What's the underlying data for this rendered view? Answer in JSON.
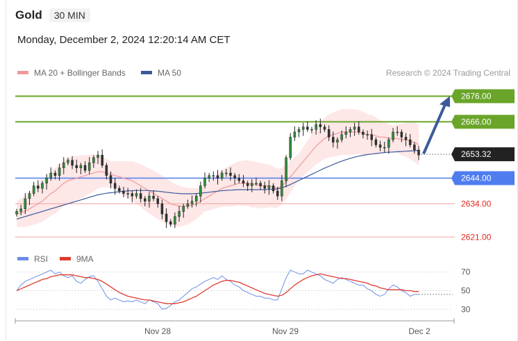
{
  "header": {
    "symbol": "Gold",
    "timeframe": "30 MIN",
    "datetime": "Monday, December 2, 2024 12:20:14 AM CET"
  },
  "legend": {
    "ma20_label": "MA 20 + Bollinger Bands",
    "ma50_label": "MA 50",
    "credit": "Research © 2024 Trading Central",
    "colors": {
      "ma20": "#ef9a9a",
      "ma50": "#3c5a99",
      "bands": "#fde3e3"
    }
  },
  "rsi_legend": {
    "rsi_label": "RSI",
    "ma9_label": "9MA",
    "colors": {
      "rsi": "#6b8ee8",
      "ma9": "#e03a2f"
    }
  },
  "chart_data": [
    {
      "type": "candlestick",
      "x_ticks": [
        "Nov 28",
        "Nov 29",
        "Dec 2"
      ],
      "ylim": [
        2620,
        2681
      ],
      "levels": [
        {
          "value": 2676.0,
          "label": "2676.00",
          "style": "resistance",
          "color": "#6aa529"
        },
        {
          "value": 2666.0,
          "label": "2666.00",
          "style": "resistance",
          "color": "#6aa529"
        },
        {
          "value": 2653.32,
          "label": "2653.32",
          "style": "current",
          "color": "#222222"
        },
        {
          "value": 2644.0,
          "label": "2644.00",
          "style": "pivot",
          "color": "#4f7df0"
        },
        {
          "value": 2634.0,
          "label": "2634.00",
          "style": "support",
          "color": "#e0261b"
        },
        {
          "value": 2621.0,
          "label": "2621.00",
          "style": "support",
          "color": "#e0261b"
        }
      ],
      "arrow": {
        "from": 2653.5,
        "to": 2675.5,
        "direction": "up",
        "color": "#3c5a99"
      },
      "closes": [
        2631,
        2632,
        2636,
        2638,
        2641,
        2640,
        2642,
        2644,
        2646,
        2645,
        2648,
        2650,
        2651,
        2649,
        2648,
        2649,
        2647,
        2650,
        2652,
        2653,
        2649,
        2645,
        2642,
        2640,
        2639,
        2638,
        2638,
        2637,
        2638,
        2636,
        2635,
        2637,
        2636,
        2634,
        2630,
        2627,
        2626,
        2629,
        2631,
        2633,
        2634,
        2635,
        2637,
        2641,
        2644,
        2645,
        2645,
        2644,
        2646,
        2646,
        2645,
        2644,
        2643,
        2642,
        2641,
        2642,
        2642,
        2641,
        2640,
        2641,
        2639,
        2637,
        2643,
        2652,
        2660,
        2662,
        2663,
        2664,
        2663,
        2663,
        2665,
        2664,
        2663,
        2660,
        2658,
        2659,
        2661,
        2662,
        2663,
        2664,
        2662,
        2661,
        2661,
        2659,
        2657,
        2656,
        2656,
        2659,
        2662,
        2662,
        2660,
        2659,
        2657,
        2655,
        2653
      ],
      "ma20": [
        2630,
        2630.5,
        2631,
        2632,
        2633,
        2634,
        2635,
        2636.5,
        2638,
        2639,
        2640.5,
        2642,
        2643,
        2643.5,
        2644,
        2644.5,
        2645,
        2645.5,
        2646,
        2646.5,
        2646.5,
        2646,
        2645.5,
        2645,
        2644.5,
        2644,
        2643.5,
        2643,
        2642,
        2641,
        2640,
        2639,
        2638,
        2637,
        2636,
        2635,
        2634,
        2633.5,
        2633,
        2633,
        2633,
        2633.5,
        2634,
        2635,
        2636,
        2637,
        2638,
        2639,
        2640,
        2640.5,
        2641,
        2641.5,
        2642,
        2642,
        2642,
        2641.5,
        2641.5,
        2641,
        2641,
        2641,
        2640.5,
        2640,
        2641,
        2642.5,
        2644.5,
        2646.5,
        2648.5,
        2650.5,
        2652.5,
        2654.5,
        2656.5,
        2658,
        2659.5,
        2660.5,
        2661,
        2661.5,
        2662,
        2662,
        2662,
        2662,
        2662,
        2661.5,
        2661,
        2661,
        2660.5,
        2660,
        2660,
        2659.5,
        2659.5,
        2659.5,
        2659,
        2659,
        2658.5,
        2658,
        2657
      ],
      "ma50": [
        2628,
        2628.5,
        2629,
        2629.5,
        2630,
        2630.5,
        2631,
        2631.5,
        2632,
        2632.5,
        2633,
        2633.5,
        2634,
        2634.5,
        2635,
        2635.5,
        2636,
        2636.5,
        2637,
        2637.5,
        2637.8,
        2638.1,
        2638.3,
        2638.5,
        2638.7,
        2638.9,
        2639,
        2639.1,
        2639.2,
        2639.2,
        2639.2,
        2639.1,
        2639,
        2638.9,
        2638.7,
        2638.5,
        2638.3,
        2638.1,
        2638,
        2637.9,
        2637.9,
        2637.9,
        2638,
        2638.1,
        2638.3,
        2638.5,
        2638.7,
        2638.9,
        2639.1,
        2639.2,
        2639.3,
        2639.4,
        2639.5,
        2639.5,
        2639.5,
        2639.5,
        2639.5,
        2639.5,
        2639.5,
        2639.6,
        2639.7,
        2639.8,
        2640.2,
        2640.8,
        2641.5,
        2642.3,
        2643.1,
        2643.9,
        2644.7,
        2645.5,
        2646.3,
        2647.1,
        2647.9,
        2648.6,
        2649.3,
        2650,
        2650.6,
        2651.2,
        2651.7,
        2652.2,
        2652.6,
        2652.9,
        2653.2,
        2653.4,
        2653.6,
        2653.8,
        2654,
        2654.1,
        2654.2,
        2654.3,
        2654.4,
        2654.5,
        2654.6,
        2654.7,
        2654.8
      ]
    },
    {
      "type": "line",
      "name": "RSI",
      "yticks": [
        70,
        50,
        30
      ],
      "ylim": [
        25,
        75
      ],
      "rsi": [
        50,
        56,
        60,
        62,
        64,
        66,
        68,
        70,
        72,
        68,
        70,
        66,
        64,
        66,
        60,
        58,
        62,
        65,
        66,
        60,
        52,
        44,
        40,
        42,
        40,
        38,
        39,
        38,
        40,
        38,
        36,
        40,
        38,
        36,
        30,
        31,
        34,
        38,
        40,
        44,
        48,
        52,
        54,
        57,
        60,
        62,
        64,
        62,
        66,
        62,
        60,
        56,
        54,
        50,
        48,
        46,
        44,
        44,
        42,
        42,
        40,
        40,
        52,
        64,
        72,
        70,
        68,
        68,
        72,
        70,
        68,
        66,
        62,
        60,
        58,
        62,
        64,
        62,
        60,
        58,
        56,
        56,
        52,
        50,
        46,
        44,
        46,
        52,
        56,
        54,
        50,
        48,
        44,
        46,
        46
      ],
      "ma9": [
        50,
        52,
        54,
        56,
        58,
        60,
        62,
        63,
        65,
        66,
        67,
        67,
        67,
        67,
        66,
        65,
        64,
        64,
        63,
        62,
        60,
        57,
        54,
        51,
        48,
        46,
        44,
        43,
        42,
        41,
        40,
        40,
        39,
        38,
        37,
        36,
        36,
        36,
        37,
        38,
        40,
        42,
        44,
        47,
        50,
        53,
        56,
        58,
        60,
        61,
        61,
        60,
        59,
        57,
        55,
        53,
        51,
        49,
        47,
        46,
        45,
        44,
        45,
        48,
        52,
        56,
        59,
        62,
        64,
        66,
        67,
        68,
        67,
        66,
        65,
        64,
        63,
        63,
        62,
        61,
        60,
        59,
        58,
        56,
        55,
        53,
        52,
        51,
        51,
        51,
        51,
        50,
        50,
        49,
        49
      ]
    }
  ]
}
